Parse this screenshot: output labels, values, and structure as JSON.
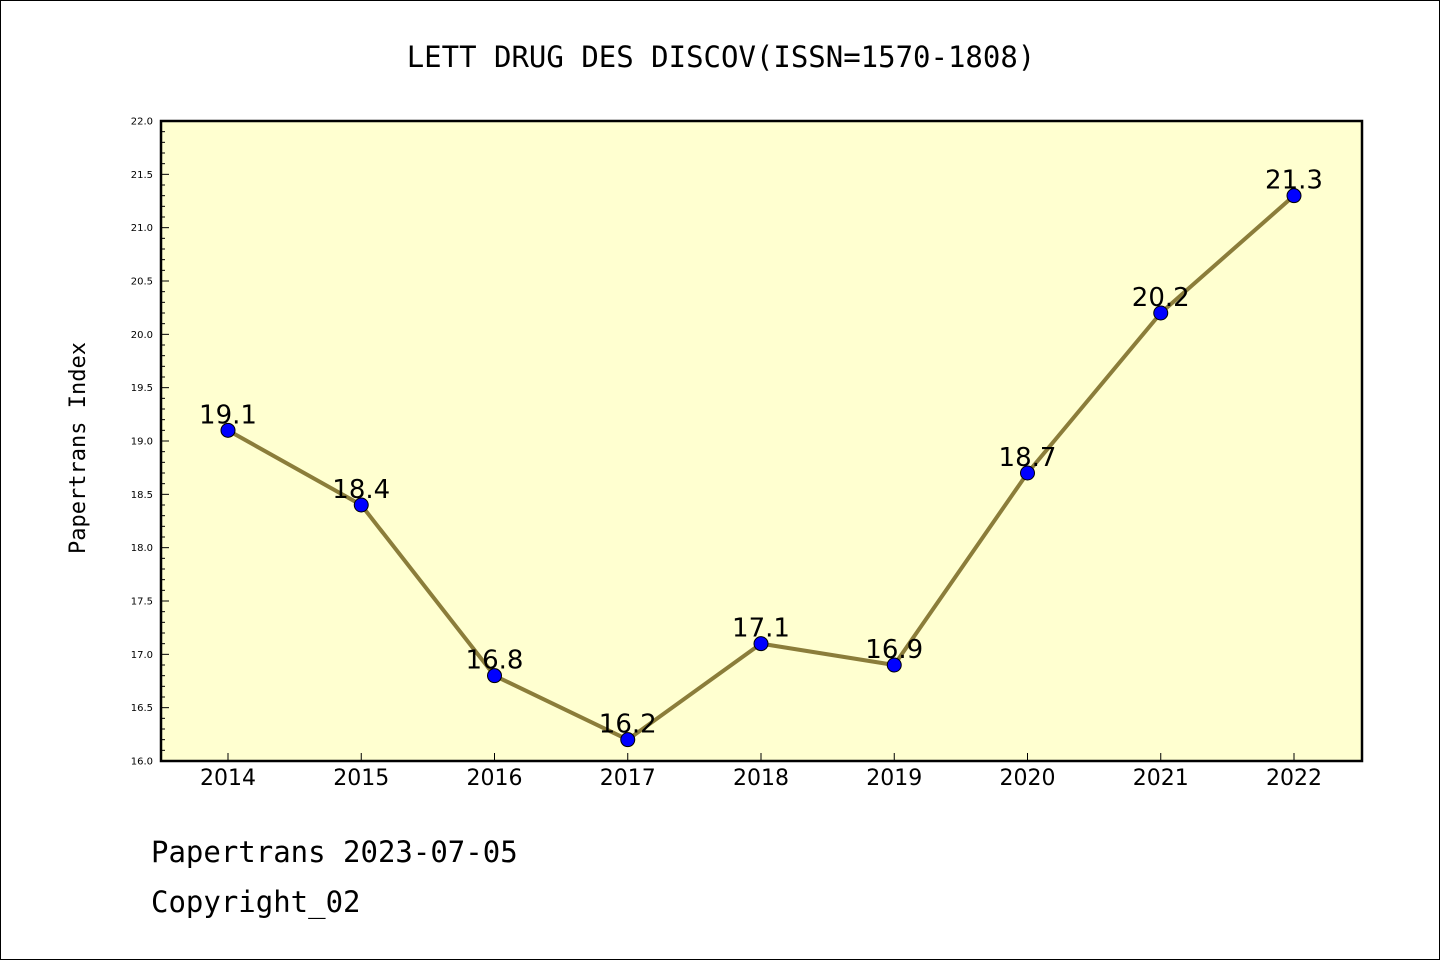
{
  "chart_data": {
    "type": "line",
    "title": "LETT DRUG DES DISCOV(ISSN=1570-1808)",
    "xlabel": "",
    "ylabel": "Papertrans Index",
    "categories": [
      "2014",
      "2015",
      "2016",
      "2017",
      "2018",
      "2019",
      "2020",
      "2021",
      "2022"
    ],
    "series": [
      {
        "values": [
          19.1,
          18.4,
          16.8,
          16.2,
          17.1,
          16.9,
          18.7,
          20.2,
          21.3
        ],
        "data_labels": [
          "19.1",
          "18.4",
          "16.8",
          "16.2",
          "17.1",
          "16.9",
          "18.7",
          "20.2",
          "21.3"
        ]
      }
    ],
    "ylim": [
      16.0,
      22.0
    ],
    "yticks": [
      "16.0",
      "16.5",
      "17.0",
      "17.5",
      "18.0",
      "18.5",
      "19.0",
      "19.5",
      "20.0",
      "20.5",
      "21.0",
      "21.5",
      "22.0"
    ],
    "grid": false,
    "colors": {
      "plot_background": "#ffffd0",
      "line": "#8b7d3a",
      "marker": "#0000ff"
    }
  },
  "footer": {
    "line1": "Papertrans 2023-07-05",
    "line2": "Copyright_02"
  }
}
